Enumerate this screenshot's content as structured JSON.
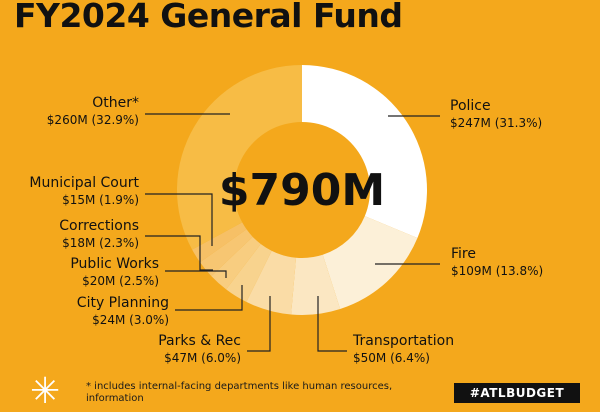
{
  "title": "FY2024 General Fund",
  "chart_data": {
    "type": "pie",
    "style": "donut",
    "total_label": "$790M",
    "slices": [
      {
        "name": "Police",
        "value_label": "$247M (31.3%)",
        "value": 247,
        "percent": 31.3,
        "color": "#FFFFFF"
      },
      {
        "name": "Fire",
        "value_label": "$109M (13.8%)",
        "value": 109,
        "percent": 13.8,
        "color": "#FCF0D8"
      },
      {
        "name": "Transportation",
        "value_label": "$50M (6.4%)",
        "value": 50,
        "percent": 6.4,
        "color": "#FBE7C2"
      },
      {
        "name": "Parks & Rec",
        "value_label": "$47M (6.0%)",
        "value": 47,
        "percent": 6.0,
        "color": "#FADCA6"
      },
      {
        "name": "City Planning",
        "value_label": "$24M (3.0%)",
        "value": 24,
        "percent": 3.0,
        "color": "#F8D38E"
      },
      {
        "name": "Public Works",
        "value_label": "$20M (2.5%)",
        "value": 20,
        "percent": 2.5,
        "color": "#F8CD80"
      },
      {
        "name": "Corrections",
        "value_label": "$18M (2.3%)",
        "value": 18,
        "percent": 2.3,
        "color": "#F7C672"
      },
      {
        "name": "Municipal Court",
        "value_label": "$15M (1.9%)",
        "value": 15,
        "percent": 1.9,
        "color": "#F6C066"
      },
      {
        "name": "Other*",
        "value_label": "$260M (32.9%)",
        "value": 260,
        "percent": 32.9,
        "color": "#F7BC45"
      }
    ]
  },
  "footnote": "* includes internal-facing departments like human resources, information",
  "hashtag": "#ATLBUDGET",
  "colors": {
    "background": "#F4A81C",
    "text": "#111111",
    "leader": "#222222"
  }
}
